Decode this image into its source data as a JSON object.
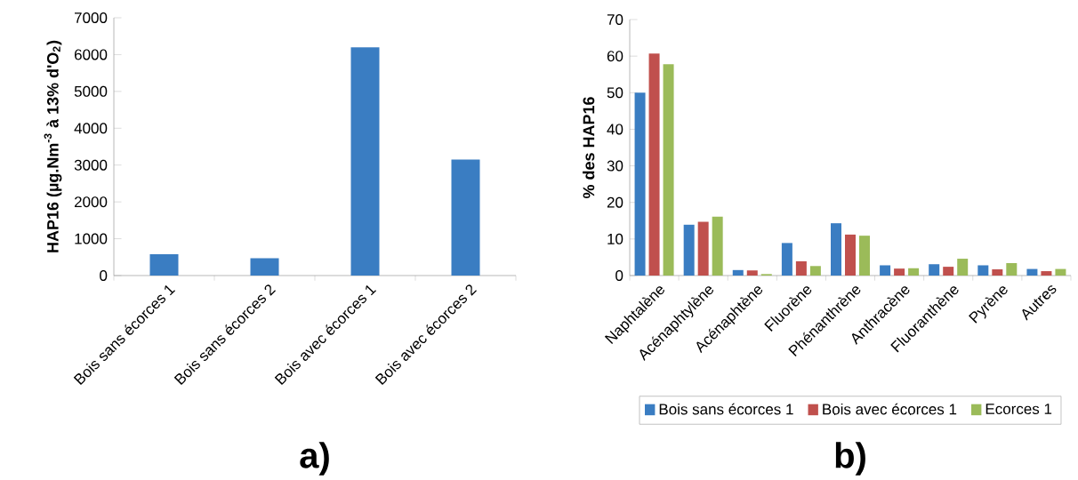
{
  "chart_data": [
    {
      "type": "bar",
      "categories": [
        "Bois sans écorces 1",
        "Bois sans écorces 2",
        "Bois avec écorces 1",
        "Bois avec écorces 2"
      ],
      "values": [
        580,
        470,
        6200,
        3150
      ],
      "color": "#3a7dc2",
      "ylabel": "HAP16  (µg.Nm$^{-3}$ à 13% d'O$_{2}$)",
      "ylim": [
        0,
        7000
      ],
      "yticks": [
        0,
        1000,
        2000,
        3000,
        4000,
        5000,
        6000,
        7000
      ],
      "grid": false,
      "legend": false,
      "annotations": [
        "a)"
      ]
    },
    {
      "type": "bar",
      "categories": [
        "Naphtalène",
        "Acénaphtylène",
        "Acénaphtène",
        "Fluorène",
        "Phénanthrène",
        "Anthracène",
        "Fluoranthène",
        "Pyrène",
        "Autres"
      ],
      "series": [
        {
          "name": "Bois sans écorces 1",
          "color": "#3a7dc2",
          "values": [
            50.0,
            13.9,
            1.5,
            8.9,
            14.3,
            2.8,
            3.1,
            2.8,
            1.8
          ]
        },
        {
          "name": "Bois avec écorces 1",
          "color": "#c0504d",
          "values": [
            60.7,
            14.7,
            1.4,
            3.9,
            11.2,
            1.9,
            2.4,
            1.7,
            1.2
          ]
        },
        {
          "name": "Ecorces 1",
          "color": "#9bbb59",
          "values": [
            57.8,
            16.1,
            0.4,
            2.6,
            10.9,
            2.0,
            4.6,
            3.4,
            1.8
          ]
        }
      ],
      "ylabel": "% des HAP16",
      "ylim": [
        0,
        70
      ],
      "yticks": [
        0,
        10,
        20,
        30,
        40,
        50,
        60,
        70
      ],
      "grid": false,
      "legend": "bottom",
      "annotations": [
        "b)"
      ]
    }
  ]
}
